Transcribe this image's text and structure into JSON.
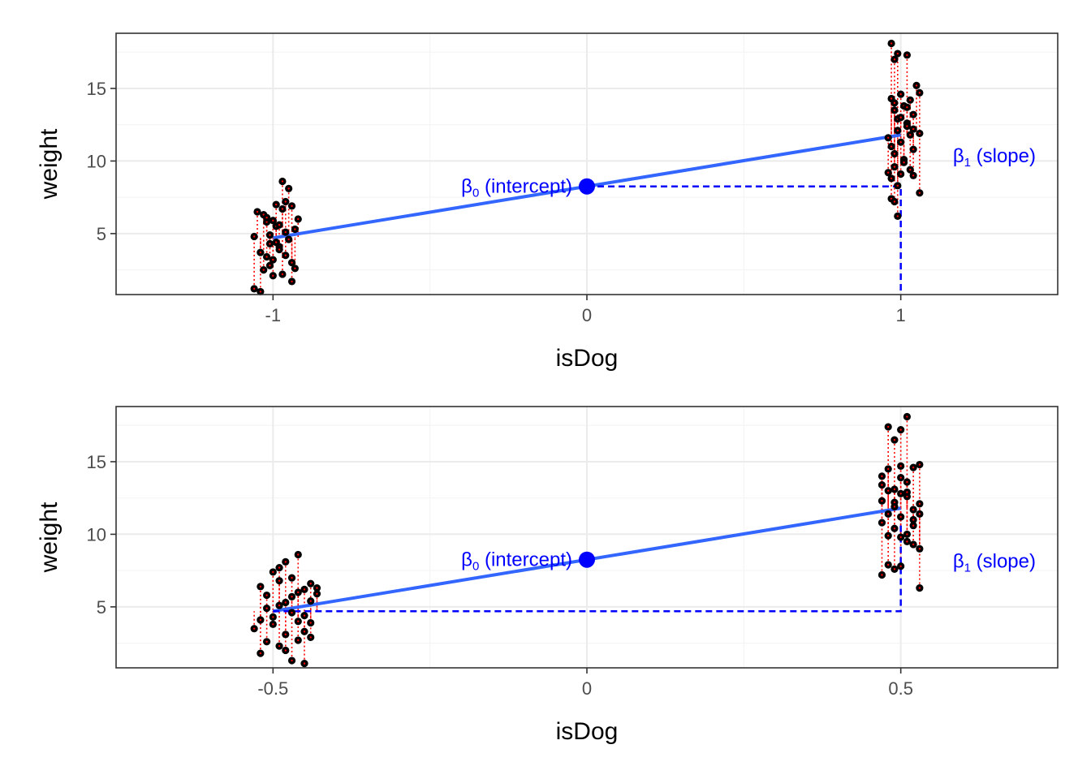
{
  "colors": {
    "points": "#000000",
    "residuals": "#ff0000",
    "regression_line": "#3366ff",
    "annotation": "#0000ff",
    "grid_major": "#ebebeb",
    "grid_minor": "#f5f5f5",
    "panel_border": "#333333"
  },
  "annotations": {
    "beta": "β",
    "intercept_sub": "0",
    "intercept_text": " (intercept)",
    "slope_sub": "1",
    "slope_text": " (slope)"
  },
  "chart_data": [
    {
      "type": "scatter",
      "title": "",
      "xlabel": "isDog",
      "ylabel": "weight",
      "xlim": [
        -1.5,
        1.5
      ],
      "ylim": [
        0.8,
        18.8
      ],
      "x_ticks": [
        -1,
        0,
        1
      ],
      "x_tick_labels": [
        "-1",
        "0",
        "1"
      ],
      "y_ticks": [
        5,
        10,
        15
      ],
      "y_tick_labels": [
        "5",
        "10",
        "15"
      ],
      "grid": true,
      "group_means": {
        "cat": 4.7,
        "dog": 11.8
      },
      "regression_line": {
        "x": [
          -1,
          1
        ],
        "y": [
          4.7,
          11.8
        ]
      },
      "intercept_point": {
        "x": 0,
        "y": 8.25
      },
      "slope_guide": {
        "x_from": 0,
        "x_to": 1,
        "y_from": 8.25,
        "y_to": 0.8
      },
      "points": [
        {
          "x": -1.06,
          "y": 1.2
        },
        {
          "x": -1.04,
          "y": 1.0
        },
        {
          "x": -1.03,
          "y": 6.3
        },
        {
          "x": -1.02,
          "y": 5.8
        },
        {
          "x": -1.01,
          "y": 4.9
        },
        {
          "x": -1.05,
          "y": 6.5
        },
        {
          "x": -1.0,
          "y": 3.2
        },
        {
          "x": -0.99,
          "y": 5.5
        },
        {
          "x": -0.98,
          "y": 4.1
        },
        {
          "x": -0.97,
          "y": 8.6
        },
        {
          "x": -0.96,
          "y": 7.2
        },
        {
          "x": -0.95,
          "y": 8.1
        },
        {
          "x": -0.94,
          "y": 6.9
        },
        {
          "x": -0.93,
          "y": 5.3
        },
        {
          "x": -0.92,
          "y": 6.0
        },
        {
          "x": -0.94,
          "y": 1.7
        },
        {
          "x": -1.04,
          "y": 3.7
        },
        {
          "x": -1.03,
          "y": 2.5
        },
        {
          "x": -1.02,
          "y": 3.4
        },
        {
          "x": -1.01,
          "y": 2.8
        },
        {
          "x": -1.0,
          "y": 2.1
        },
        {
          "x": -0.99,
          "y": 4.4
        },
        {
          "x": -0.98,
          "y": 3.9
        },
        {
          "x": -0.97,
          "y": 2.2
        },
        {
          "x": -0.96,
          "y": 5.1
        },
        {
          "x": -0.95,
          "y": 4.6
        },
        {
          "x": -0.94,
          "y": 3.0
        },
        {
          "x": -0.93,
          "y": 2.6
        },
        {
          "x": -1.06,
          "y": 4.8
        },
        {
          "x": -1.02,
          "y": 6.1
        },
        {
          "x": -0.99,
          "y": 7.0
        },
        {
          "x": -0.97,
          "y": 6.7
        },
        {
          "x": -1.0,
          "y": 5.9
        },
        {
          "x": -0.96,
          "y": 3.5
        },
        {
          "x": -1.01,
          "y": 4.3
        },
        {
          "x": -0.98,
          "y": 5.6
        },
        {
          "x": 0.97,
          "y": 18.1
        },
        {
          "x": 0.98,
          "y": 17.0
        },
        {
          "x": 0.99,
          "y": 17.4
        },
        {
          "x": 1.02,
          "y": 17.3
        },
        {
          "x": 0.97,
          "y": 14.3
        },
        {
          "x": 0.98,
          "y": 13.5
        },
        {
          "x": 0.99,
          "y": 12.9
        },
        {
          "x": 1.0,
          "y": 14.6
        },
        {
          "x": 1.01,
          "y": 13.8
        },
        {
          "x": 1.02,
          "y": 12.6
        },
        {
          "x": 1.03,
          "y": 14.2
        },
        {
          "x": 1.04,
          "y": 13.2
        },
        {
          "x": 1.05,
          "y": 15.2
        },
        {
          "x": 1.06,
          "y": 14.7
        },
        {
          "x": 0.96,
          "y": 11.6
        },
        {
          "x": 0.97,
          "y": 11.0
        },
        {
          "x": 0.98,
          "y": 10.5
        },
        {
          "x": 0.99,
          "y": 12.1
        },
        {
          "x": 1.0,
          "y": 11.3
        },
        {
          "x": 1.01,
          "y": 10.1
        },
        {
          "x": 1.02,
          "y": 12.4
        },
        {
          "x": 1.03,
          "y": 11.8
        },
        {
          "x": 1.04,
          "y": 10.8
        },
        {
          "x": 1.06,
          "y": 11.9
        },
        {
          "x": 0.96,
          "y": 9.2
        },
        {
          "x": 0.97,
          "y": 8.8
        },
        {
          "x": 0.98,
          "y": 9.6
        },
        {
          "x": 0.99,
          "y": 8.3
        },
        {
          "x": 1.0,
          "y": 9.1
        },
        {
          "x": 1.01,
          "y": 9.9
        },
        {
          "x": 1.03,
          "y": 9.4
        },
        {
          "x": 1.04,
          "y": 9.0
        },
        {
          "x": 0.97,
          "y": 7.4
        },
        {
          "x": 0.98,
          "y": 7.2
        },
        {
          "x": 0.99,
          "y": 6.2
        },
        {
          "x": 1.06,
          "y": 7.8
        },
        {
          "x": 1.0,
          "y": 13.0
        },
        {
          "x": 1.02,
          "y": 13.7
        },
        {
          "x": 0.98,
          "y": 14.0
        },
        {
          "x": 1.04,
          "y": 12.2
        }
      ]
    },
    {
      "type": "scatter",
      "title": "",
      "xlabel": "isDog",
      "ylabel": "weight",
      "xlim": [
        -0.75,
        0.75
      ],
      "ylim": [
        0.8,
        18.8
      ],
      "x_ticks": [
        -0.5,
        0,
        0.5
      ],
      "x_tick_labels": [
        "-0.5",
        "0",
        "0.5"
      ],
      "y_ticks": [
        5,
        10,
        15
      ],
      "y_tick_labels": [
        "5",
        "10",
        "15"
      ],
      "grid": true,
      "group_means": {
        "cat": 4.7,
        "dog": 11.8
      },
      "regression_line": {
        "x": [
          -0.5,
          0.5
        ],
        "y": [
          4.7,
          11.8
        ]
      },
      "intercept_point": {
        "x": 0,
        "y": 8.25
      },
      "slope_guide": {
        "x_from": -0.5,
        "x_to": 0.5,
        "y_from": 4.7,
        "y_to": 10.8
      },
      "points": [
        {
          "x": -0.53,
          "y": 3.5
        },
        {
          "x": -0.52,
          "y": 1.8
        },
        {
          "x": -0.51,
          "y": 5.8
        },
        {
          "x": -0.5,
          "y": 4.3
        },
        {
          "x": -0.49,
          "y": 2.3
        },
        {
          "x": -0.48,
          "y": 8.1
        },
        {
          "x": -0.47,
          "y": 7.0
        },
        {
          "x": -0.46,
          "y": 8.6
        },
        {
          "x": -0.45,
          "y": 6.2
        },
        {
          "x": -0.44,
          "y": 5.4
        },
        {
          "x": -0.47,
          "y": 1.3
        },
        {
          "x": -0.45,
          "y": 1.1
        },
        {
          "x": -0.52,
          "y": 6.4
        },
        {
          "x": -0.51,
          "y": 4.9
        },
        {
          "x": -0.5,
          "y": 3.8
        },
        {
          "x": -0.49,
          "y": 6.8
        },
        {
          "x": -0.48,
          "y": 3.1
        },
        {
          "x": -0.47,
          "y": 4.6
        },
        {
          "x": -0.46,
          "y": 2.7
        },
        {
          "x": -0.45,
          "y": 3.3
        },
        {
          "x": -0.44,
          "y": 6.6
        },
        {
          "x": -0.43,
          "y": 5.9
        },
        {
          "x": -0.51,
          "y": 2.6
        },
        {
          "x": -0.49,
          "y": 5.1
        },
        {
          "x": -0.47,
          "y": 5.7
        },
        {
          "x": -0.46,
          "y": 4.0
        },
        {
          "x": -0.44,
          "y": 3.9
        },
        {
          "x": -0.5,
          "y": 7.4
        },
        {
          "x": -0.48,
          "y": 2.0
        },
        {
          "x": -0.45,
          "y": 4.4
        },
        {
          "x": -0.43,
          "y": 6.3
        },
        {
          "x": -0.52,
          "y": 4.1
        },
        {
          "x": -0.49,
          "y": 7.7
        },
        {
          "x": -0.46,
          "y": 6.0
        },
        {
          "x": -0.44,
          "y": 2.9
        },
        {
          "x": -0.48,
          "y": 5.3
        },
        {
          "x": 0.48,
          "y": 17.4
        },
        {
          "x": 0.5,
          "y": 17.2
        },
        {
          "x": 0.51,
          "y": 18.1
        },
        {
          "x": 0.49,
          "y": 16.5
        },
        {
          "x": 0.47,
          "y": 14.0
        },
        {
          "x": 0.48,
          "y": 14.5
        },
        {
          "x": 0.49,
          "y": 13.1
        },
        {
          "x": 0.5,
          "y": 14.7
        },
        {
          "x": 0.51,
          "y": 13.6
        },
        {
          "x": 0.52,
          "y": 14.6
        },
        {
          "x": 0.53,
          "y": 14.8
        },
        {
          "x": 0.47,
          "y": 13.4
        },
        {
          "x": 0.48,
          "y": 11.4
        },
        {
          "x": 0.49,
          "y": 12.2
        },
        {
          "x": 0.5,
          "y": 12.8
        },
        {
          "x": 0.51,
          "y": 12.6
        },
        {
          "x": 0.52,
          "y": 11.7
        },
        {
          "x": 0.53,
          "y": 12.1
        },
        {
          "x": 0.47,
          "y": 10.8
        },
        {
          "x": 0.48,
          "y": 9.9
        },
        {
          "x": 0.49,
          "y": 10.4
        },
        {
          "x": 0.5,
          "y": 11.2
        },
        {
          "x": 0.51,
          "y": 10.0
        },
        {
          "x": 0.52,
          "y": 9.3
        },
        {
          "x": 0.53,
          "y": 9.0
        },
        {
          "x": 0.5,
          "y": 9.8
        },
        {
          "x": 0.47,
          "y": 7.2
        },
        {
          "x": 0.48,
          "y": 7.9
        },
        {
          "x": 0.49,
          "y": 7.6
        },
        {
          "x": 0.5,
          "y": 7.8
        },
        {
          "x": 0.53,
          "y": 6.3
        },
        {
          "x": 0.52,
          "y": 11.0
        },
        {
          "x": 0.51,
          "y": 12.9
        },
        {
          "x": 0.49,
          "y": 11.9
        },
        {
          "x": 0.52,
          "y": 10.6
        },
        {
          "x": 0.5,
          "y": 13.9
        },
        {
          "x": 0.47,
          "y": 12.3
        },
        {
          "x": 0.51,
          "y": 9.5
        },
        {
          "x": 0.48,
          "y": 13.0
        },
        {
          "x": 0.53,
          "y": 11.4
        }
      ]
    }
  ]
}
